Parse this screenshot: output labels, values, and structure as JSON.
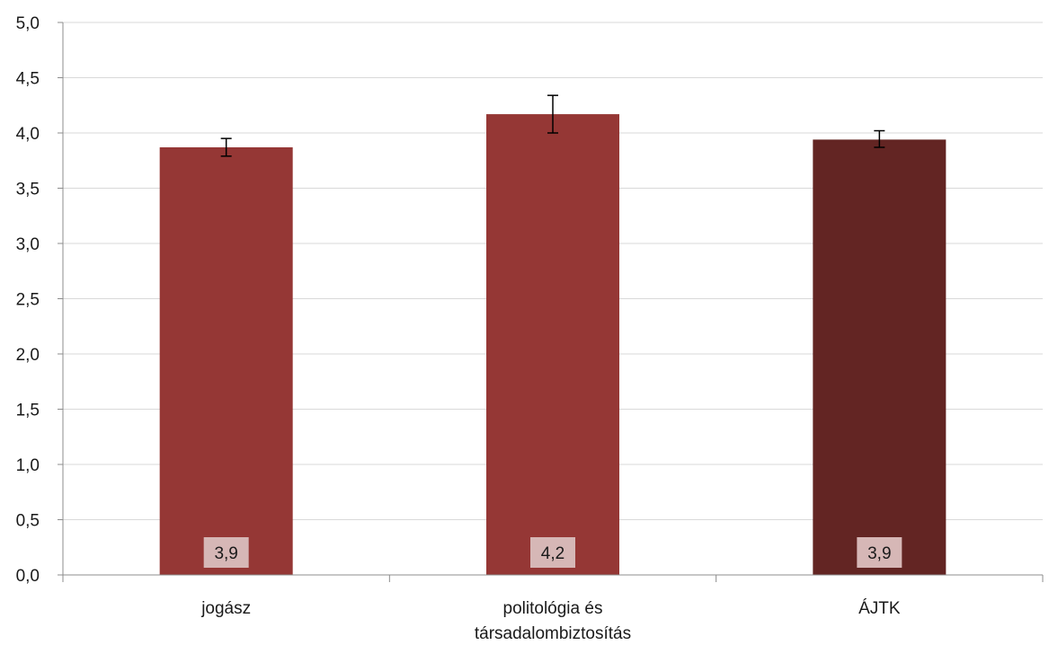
{
  "chart_data": {
    "type": "bar",
    "title": "",
    "xlabel": "",
    "ylabel": "",
    "categories": [
      "jogász",
      "politológia és társadalombiztosítás",
      "ÁJTK"
    ],
    "category_lines": [
      [
        "jogász"
      ],
      [
        "politológia és",
        "társadalombiztosítás"
      ],
      [
        "ÁJTK"
      ]
    ],
    "values": [
      3.87,
      4.17,
      3.94
    ],
    "value_labels": [
      "3,9",
      "4,2",
      "3,9"
    ],
    "error_low": [
      3.79,
      4.0,
      3.87
    ],
    "error_high": [
      3.95,
      4.34,
      4.02
    ],
    "ylim": [
      0,
      5
    ],
    "yticks": [
      0,
      0.5,
      1,
      1.5,
      2,
      2.5,
      3,
      3.5,
      4,
      4.5,
      5
    ],
    "ytick_labels": [
      "0,0",
      "0,5",
      "1,0",
      "1,5",
      "2,0",
      "2,5",
      "3,0",
      "3,5",
      "4,0",
      "4,5",
      "5,0"
    ],
    "grid": true,
    "legend": "none",
    "colors": {
      "bar": [
        "#953735",
        "#953735",
        "#632523"
      ],
      "label_box": "#d6b7b6",
      "grid": "#d9d9d9",
      "axis": "#8c8c8c",
      "error_bar": "#000000"
    }
  }
}
